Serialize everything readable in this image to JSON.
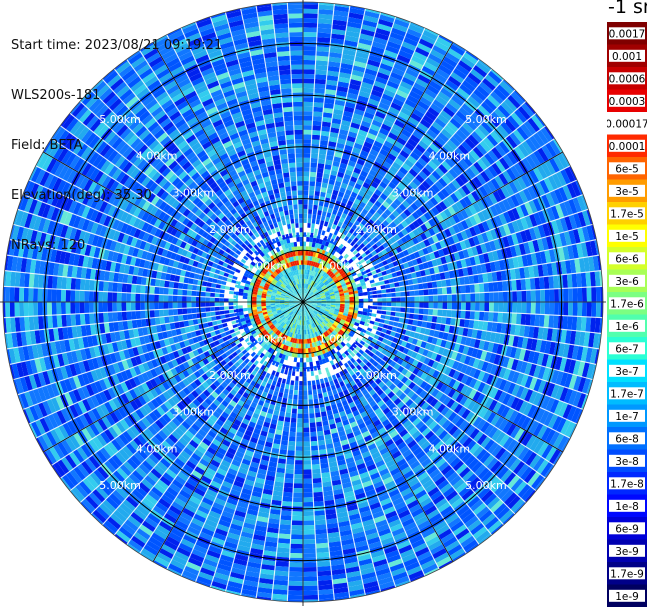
{
  "header": {
    "start_time": "Start time: 2023/08/21 09:19:21",
    "instrument": "WLS200s-181",
    "field": "Field: BETA",
    "elevation": "Elevation(deg): 35.30",
    "nrays": "NRays: 120"
  },
  "chart_data": {
    "type": "heatmap",
    "projection": "polar",
    "unit_label": "-1 sr",
    "range_rings_km": [
      1,
      2,
      3,
      4,
      5
    ],
    "range_ring_labels": [
      "1.00km",
      "2.00km",
      "3.00km",
      "4.00km",
      "5.00km"
    ],
    "max_range_km": 5.8,
    "n_rays": 120,
    "radial_lines_deg": [
      0,
      30,
      60,
      90,
      120,
      150,
      180,
      210,
      240,
      270,
      300,
      330
    ],
    "features": {
      "high_backscatter_ring_km": 1.0,
      "near_field_level": "1e-5",
      "far_field_level": "3e-8"
    },
    "colorbar": {
      "labels": [
        "0.0017",
        "0.001",
        "0.0006",
        "0.0003",
        "0.00017",
        "0.0001",
        "6e-5",
        "3e-5",
        "1.7e-5",
        "1e-5",
        "6e-6",
        "3e-6",
        "1.7e-6",
        "1e-6",
        "6e-7",
        "3e-7",
        "1.7e-7",
        "1e-7",
        "6e-8",
        "3e-8",
        "1.7e-8",
        "1e-8",
        "6e-9",
        "3e-9",
        "1.7e-9",
        "1e-9"
      ],
      "colors": [
        "#7f0000",
        "#a00000",
        "#c80000",
        "#e80000",
        "#ffffff",
        "#ff2a00",
        "#ff6400",
        "#ff9c00",
        "#ffd000",
        "#ffff00",
        "#d4ff2a",
        "#a8ff56",
        "#7cff82",
        "#50ffae",
        "#2affd4",
        "#00e0ff",
        "#00bcff",
        "#0098ff",
        "#0070ff",
        "#004cff",
        "#0028ff",
        "#0008ff",
        "#0000d8",
        "#0000b0",
        "#000088",
        "#000060"
      ]
    }
  }
}
